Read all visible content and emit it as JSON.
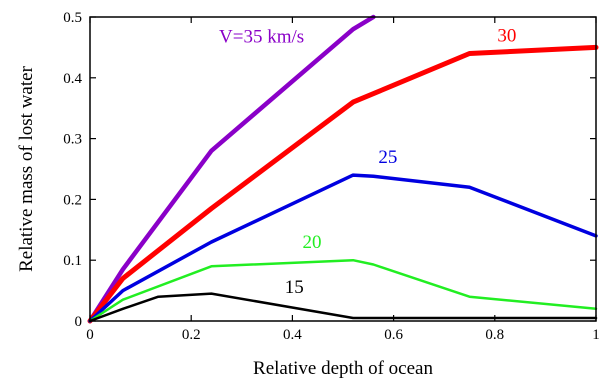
{
  "chart_data": {
    "type": "line",
    "xlabel": "Relative depth of ocean",
    "ylabel": "Relative mass of lost water",
    "xlim": [
      0,
      1
    ],
    "ylim": [
      0,
      0.5
    ],
    "x_ticks": [
      "0",
      "0.2",
      "0.4",
      "0.6",
      "0.8",
      "1"
    ],
    "y_ticks": [
      "0",
      "0.1",
      "0.2",
      "0.3",
      "0.4",
      "0.5"
    ],
    "grid": false,
    "legend": "none",
    "series": [
      {
        "name": "V=35 km/s",
        "color": "#8a00c8",
        "stroke": 4.5,
        "x": [
          0,
          0.065,
          0.24,
          0.52,
          0.56
        ],
        "y": [
          0,
          0.085,
          0.28,
          0.48,
          0.5
        ]
      },
      {
        "name": "30",
        "color": "#ff0000",
        "stroke": 5,
        "x": [
          0,
          0.065,
          0.24,
          0.52,
          0.75,
          1.0
        ],
        "y": [
          0,
          0.07,
          0.185,
          0.36,
          0.44,
          0.45
        ]
      },
      {
        "name": "25",
        "color": "#0000e0",
        "stroke": 3.5,
        "x": [
          0,
          0.065,
          0.24,
          0.52,
          0.56,
          0.75,
          1.0
        ],
        "y": [
          0,
          0.05,
          0.13,
          0.24,
          0.238,
          0.22,
          0.14
        ]
      },
      {
        "name": "20",
        "color": "#22ee22",
        "stroke": 2.5,
        "x": [
          0,
          0.065,
          0.24,
          0.52,
          0.56,
          0.75,
          1.0
        ],
        "y": [
          0,
          0.035,
          0.09,
          0.1,
          0.093,
          0.04,
          0.02
        ]
      },
      {
        "name": "15",
        "color": "#000000",
        "stroke": 2.5,
        "x": [
          0,
          0.065,
          0.135,
          0.24,
          0.52,
          1.0
        ],
        "y": [
          0,
          0.02,
          0.04,
          0.045,
          0.005,
          0.005
        ]
      }
    ],
    "annotations": [
      {
        "text": "V=35 km/s",
        "color": "#8a00c8",
        "x": 0.255,
        "y": 0.458
      },
      {
        "text": "30",
        "color": "#ff0000",
        "x": 0.805,
        "y": 0.46
      },
      {
        "text": "25",
        "color": "#0000e0",
        "x": 0.57,
        "y": 0.26
      },
      {
        "text": "20",
        "color": "#22ee22",
        "x": 0.42,
        "y": 0.12
      },
      {
        "text": "15",
        "color": "#000000",
        "x": 0.385,
        "y": 0.046
      }
    ]
  }
}
